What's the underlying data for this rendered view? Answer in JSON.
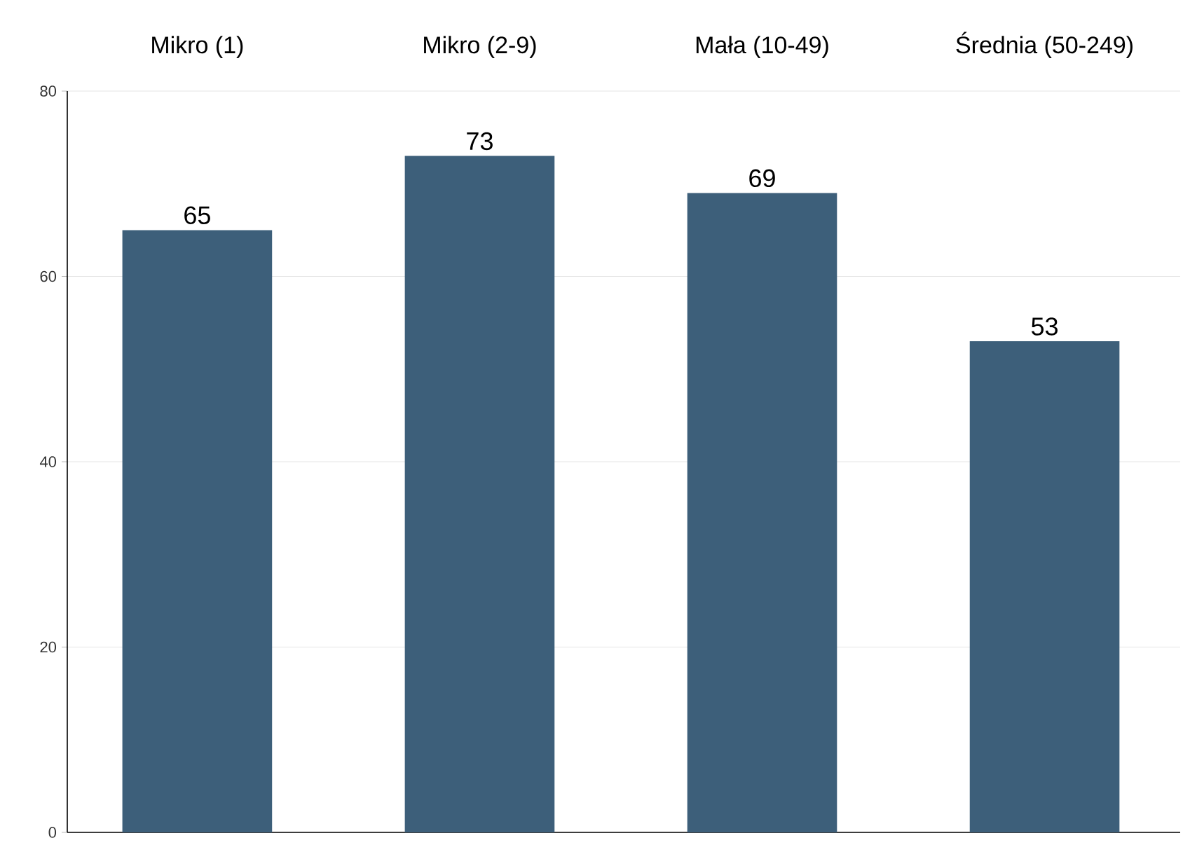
{
  "chart_data": {
    "type": "bar",
    "categories": [
      "Mikro (1)",
      "Mikro (2-9)",
      "Mała (10-49)",
      "Średnia (50-249)"
    ],
    "values": [
      65,
      73,
      69,
      53
    ],
    "color": "#3d5f7a",
    "ylim": [
      0,
      80
    ],
    "yticks": [
      0,
      20,
      40,
      60,
      80
    ],
    "grid": "y",
    "data_labels": true
  }
}
